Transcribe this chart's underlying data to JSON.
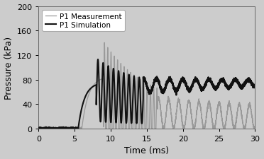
{
  "title": "",
  "xlabel": "Time (ms)",
  "ylabel": "Pressure (kPa)",
  "xlim": [
    0,
    30
  ],
  "ylim": [
    0,
    200
  ],
  "xticks": [
    0,
    5,
    10,
    15,
    20,
    25,
    30
  ],
  "yticks": [
    0,
    40,
    80,
    120,
    160,
    200
  ],
  "background_color": "#cccccc",
  "legend_labels": [
    "P1 Measurement",
    "P1 Simulation"
  ],
  "measurement_color": "#999999",
  "simulation_color": "#111111",
  "measurement_lw": 0.9,
  "simulation_lw": 1.5
}
